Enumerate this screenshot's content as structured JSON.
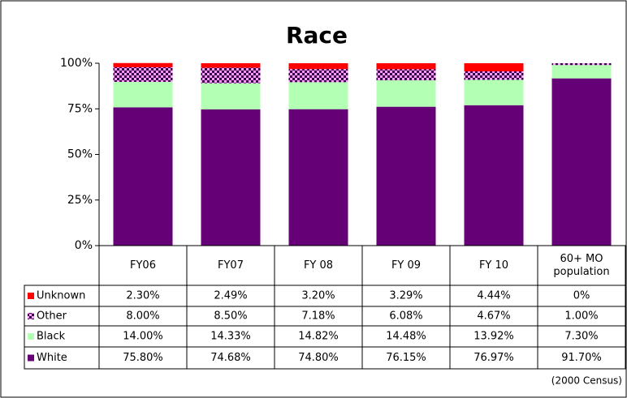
{
  "chart_data": {
    "type": "stacked_bar",
    "title": "Race",
    "categories": [
      "FY06",
      "FY07",
      "FY 08",
      "FY 09",
      "FY 10",
      "60+ MO population"
    ],
    "series": [
      {
        "name": "Unknown",
        "color": "#ff0000",
        "values": [
          2.3,
          2.49,
          3.2,
          3.29,
          4.44,
          0
        ],
        "value_labels": [
          "2.30%",
          "2.49%",
          "3.20%",
          "3.29%",
          "4.44%",
          "0%"
        ]
      },
      {
        "name": "Other",
        "color": "#ff99ff",
        "values": [
          8.0,
          8.5,
          7.18,
          6.08,
          4.67,
          1.0
        ],
        "value_labels": [
          "8.00%",
          "8.50%",
          "7.18%",
          "6.08%",
          "4.67%",
          "1.00%"
        ]
      },
      {
        "name": "Black",
        "color": "#b3ffb3",
        "values": [
          14.0,
          14.33,
          14.82,
          14.48,
          13.92,
          7.3
        ],
        "value_labels": [
          "14.00%",
          "14.33%",
          "14.82%",
          "14.48%",
          "13.92%",
          "7.30%"
        ]
      },
      {
        "name": "White",
        "color": "#660077",
        "values": [
          75.8,
          74.68,
          74.8,
          76.15,
          76.97,
          91.7
        ],
        "value_labels": [
          "75.80%",
          "74.68%",
          "74.80%",
          "76.15%",
          "76.97%",
          "91.70%"
        ]
      }
    ],
    "ylim": [
      0,
      100
    ],
    "yticks": [
      {
        "value": 0,
        "label": "0%"
      },
      {
        "value": 25,
        "label": "25%"
      },
      {
        "value": 50,
        "label": "50%"
      },
      {
        "value": 75,
        "label": "75%"
      },
      {
        "value": 100,
        "label": "100%"
      }
    ],
    "note": "(2000 Census)"
  }
}
